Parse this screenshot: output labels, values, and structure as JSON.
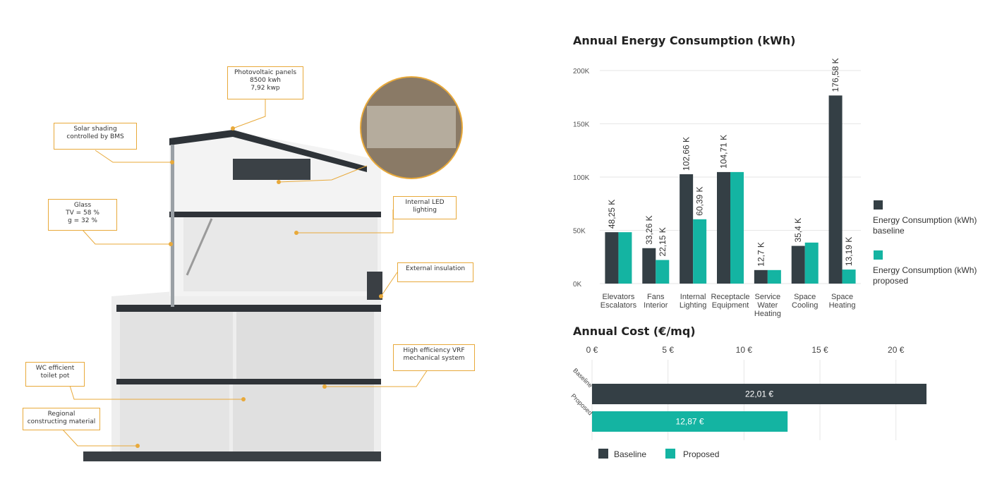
{
  "colors": {
    "baseline": "#343f45",
    "proposed": "#14b4a2",
    "accent": "#e8a93a",
    "grid": "#e6e6e6"
  },
  "diagram": {
    "callouts": [
      {
        "id": "pv",
        "text": "Photovoltaic panels\n8500 kwh\n7,92 kwp"
      },
      {
        "id": "shading",
        "text": "Solar shading\ncontrolled by BMS"
      },
      {
        "id": "glass",
        "text": "Glass\nTV = 58 %\ng = 32 %"
      },
      {
        "id": "led",
        "text": "Internal LED\nlighting"
      },
      {
        "id": "insulation",
        "text": "External insulation"
      },
      {
        "id": "vrf",
        "text": "High efficiency VRF\nmechanical system"
      },
      {
        "id": "wc",
        "text": "WC efficient\ntoilet pot"
      },
      {
        "id": "material",
        "text": "Regional\nconstructing material"
      }
    ]
  },
  "chart_data": [
    {
      "type": "bar",
      "title": "Annual Energy Consumption (kWh)",
      "categories": [
        [
          "Elevators",
          "Escalators"
        ],
        [
          "Fans",
          "Interior"
        ],
        [
          "Internal",
          "Lighting"
        ],
        [
          "Receptacle",
          "Equipment"
        ],
        [
          "Service",
          "Water",
          "Heating"
        ],
        [
          "Space",
          "Cooling"
        ],
        [
          "Space",
          "Heating"
        ]
      ],
      "series": [
        {
          "name": "Energy Consumption (kWh) baseline",
          "values": [
            48250,
            33260,
            102660,
            104710,
            12700,
            35400,
            176580
          ],
          "labels": [
            "48,25 K",
            "33,26 K",
            "102,66 K",
            "104,71 K",
            "12,7 K",
            "35,4 K",
            "176,58 K"
          ]
        },
        {
          "name": "Energy Consumption (kWh) proposed",
          "values": [
            48250,
            22150,
            60390,
            104710,
            12700,
            38500,
            13190
          ],
          "labels": [
            "",
            "22,15 K",
            "60,39 K",
            "",
            "",
            "",
            "13,19 K"
          ]
        }
      ],
      "yticks": [
        0,
        50000,
        100000,
        150000,
        200000
      ],
      "ytick_labels": [
        "0K",
        "50K",
        "100K",
        "150K",
        "200K"
      ],
      "ylim": [
        0,
        200000
      ],
      "legend": [
        [
          "Energy Consumption (kWh)",
          "baseline"
        ],
        [
          "Energy Consumption (kWh)",
          "proposed"
        ]
      ],
      "legend_position": "right"
    },
    {
      "type": "bar",
      "orientation": "horizontal",
      "title": "Annual Cost (€/mq)",
      "categories": [
        "Baseline",
        "Proposed"
      ],
      "values": [
        22.01,
        12.87
      ],
      "value_labels": [
        "22,01 €",
        "12,87 €"
      ],
      "xticks": [
        0,
        5,
        10,
        15,
        20
      ],
      "xtick_labels": [
        "0 €",
        "5 €",
        "10 €",
        "15 €",
        "20 €"
      ],
      "xlim": [
        0,
        22.01
      ],
      "legend": [
        "Baseline",
        "Proposed"
      ],
      "legend_position": "bottom-left"
    }
  ]
}
